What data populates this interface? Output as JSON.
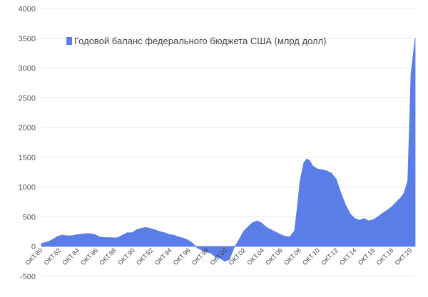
{
  "chart_data": {
    "type": "area",
    "title": "",
    "xlabel": "",
    "ylabel": "",
    "legend": {
      "entries": [
        "Годовой баланс федерального бюджета США (млрд долл)"
      ],
      "placement": "top"
    },
    "ylim": [
      -500,
      4000
    ],
    "yticks": [
      "-500",
      "0",
      "500",
      "1000",
      "1500",
      "2000",
      "2500",
      "3000",
      "3500",
      "4000"
    ],
    "xticks": [
      "ОКТ.80",
      "ОКТ.82",
      "ОКТ.84",
      "ОКТ.86",
      "ОКТ.88",
      "ОКТ.90",
      "ОКТ.92",
      "ОКТ.94",
      "ОКТ.96",
      "ОКТ.98",
      "ОКТ.00",
      "ОКТ.02",
      "ОКТ.04",
      "ОКТ.06",
      "ОКТ.08",
      "ОКТ.10",
      "ОКТ.12",
      "ОКТ.14",
      "ОКТ.16",
      "ОКТ.18",
      "ОКТ.20"
    ],
    "grid": true,
    "series": [
      {
        "name": "Годовой баланс федерального бюджета США (млрд долл)",
        "color": "#5a7de8",
        "x": [
          1980.75,
          1981.5,
          1982.0,
          1982.5,
          1983.0,
          1983.5,
          1984.0,
          1984.5,
          1985.0,
          1985.5,
          1986.0,
          1986.5,
          1987.0,
          1987.5,
          1988.0,
          1988.5,
          1989.0,
          1989.5,
          1990.0,
          1990.5,
          1991.0,
          1991.5,
          1992.0,
          1992.5,
          1993.0,
          1993.5,
          1994.0,
          1994.5,
          1995.0,
          1995.5,
          1996.0,
          1996.5,
          1997.0,
          1997.5,
          1998.0,
          1998.5,
          1999.0,
          1999.5,
          2000.0,
          2000.5,
          2001.0,
          2001.5,
          2002.0,
          2002.5,
          2003.0,
          2003.5,
          2004.0,
          2004.5,
          2005.0,
          2005.5,
          2006.0,
          2006.5,
          2007.0,
          2007.5,
          2008.0,
          2008.3,
          2008.6,
          2009.0,
          2009.3,
          2009.6,
          2010.0,
          2010.5,
          2011.0,
          2011.5,
          2012.0,
          2012.5,
          2013.0,
          2013.5,
          2014.0,
          2014.5,
          2015.0,
          2015.5,
          2016.0,
          2016.5,
          2017.0,
          2017.5,
          2018.0,
          2018.5,
          2019.0,
          2019.5,
          2019.8,
          2020.0,
          2020.2,
          2020.4,
          2020.55,
          2020.7,
          2020.85,
          2021.0
        ],
        "values": [
          50,
          80,
          120,
          170,
          190,
          180,
          180,
          195,
          205,
          215,
          215,
          200,
          160,
          150,
          150,
          145,
          150,
          190,
          230,
          230,
          280,
          305,
          320,
          300,
          280,
          250,
          230,
          200,
          190,
          160,
          140,
          110,
          60,
          -20,
          -60,
          -90,
          -110,
          -180,
          -200,
          -250,
          -220,
          -20,
          100,
          250,
          330,
          400,
          430,
          390,
          320,
          280,
          240,
          200,
          170,
          160,
          260,
          650,
          1100,
          1400,
          1470,
          1450,
          1350,
          1300,
          1290,
          1270,
          1230,
          1130,
          900,
          700,
          550,
          470,
          440,
          470,
          430,
          450,
          500,
          560,
          610,
          670,
          750,
          830,
          900,
          1000,
          1100,
          2100,
          2900,
          3100,
          3300,
          3500
        ]
      }
    ]
  }
}
